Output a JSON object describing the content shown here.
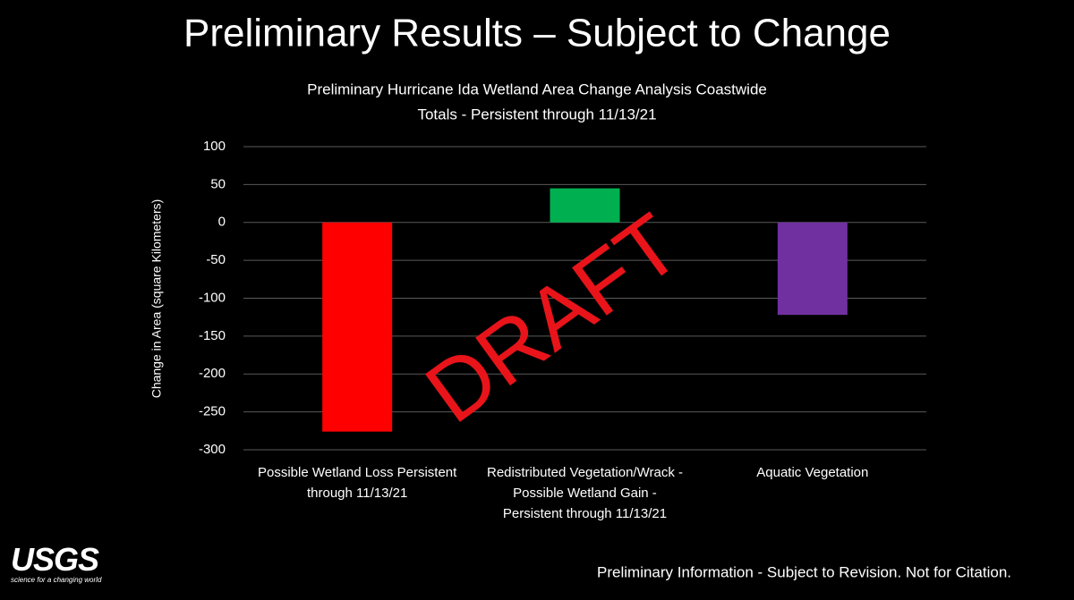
{
  "slide_title": "Preliminary Results – Subject to Change",
  "watermark": "DRAFT",
  "footer": "Preliminary Information - Subject to Revision.  Not for Citation.",
  "logo": {
    "name": "USGS",
    "tagline": "science for a changing world"
  },
  "chart_data": {
    "type": "bar",
    "title": [
      "Preliminary Hurricane Ida Wetland Area Change Analysis Coastwide",
      "Totals - Persistent through 11/13/21"
    ],
    "y_label": "Change in Area (square Kilometers)",
    "categories": [
      "Possible Wetland Loss Persistent through 11/13/21",
      "Redistributed Vegetation/Wrack - Possible Wetland Gain - Persistent through 11/13/21",
      "Aquatic Vegetation"
    ],
    "values": [
      -276,
      45,
      -122
    ],
    "colors": [
      "#ff0000",
      "#00b050",
      "#7030a0"
    ],
    "ylim": [
      -300,
      100
    ],
    "yticks": [
      -300,
      -250,
      -200,
      -150,
      -100,
      -50,
      0,
      50,
      100
    ],
    "grid": true
  }
}
